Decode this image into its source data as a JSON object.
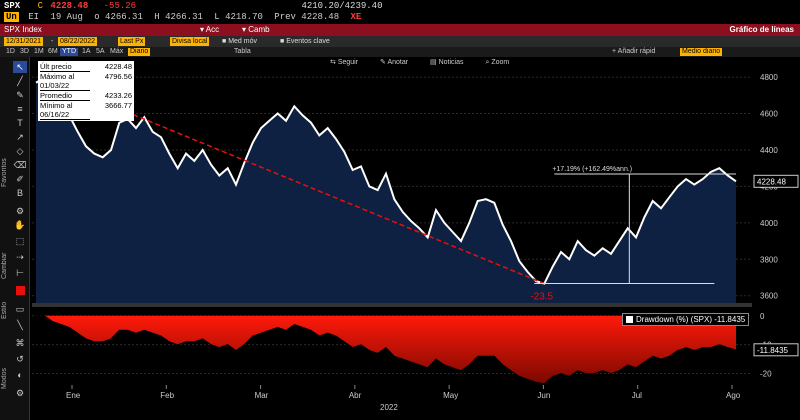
{
  "quote": {
    "ticker": "SPX",
    "exchange_code": "C",
    "price": "4228.48",
    "change": "-55.26",
    "range": "4210.20/4239.40",
    "currency_badge": "Un",
    "exchange_code2": "EI",
    "date": "19 Aug",
    "open": "o 4266.31",
    "high": "H 4266.31",
    "low": "L 4218.70",
    "prev": "Prev 4228.48",
    "close_mark": "XE"
  },
  "menu": {
    "security": "SPX Index",
    "items": [
      "Acc",
      "Camb"
    ],
    "title": "Gráfico de líneas"
  },
  "params": {
    "start_date": "12/31/2021",
    "end_date": "08/22/2022",
    "field": "Last Px",
    "local_ccy": "Divisa local",
    "med_mov": "Med móv",
    "events": "Eventos clave"
  },
  "ranges": [
    "1D",
    "3D",
    "1M",
    "6M",
    "YTD",
    "1A",
    "5A",
    "Máx",
    "Diario",
    "Tabla"
  ],
  "ranges_active": "YTD",
  "right_toolbar": {
    "add_label": "Añadir rápid",
    "field": "Medio diario"
  },
  "chart_toolbar": [
    "Seguir",
    "Anotar",
    "Noticias",
    "Zoom"
  ],
  "left_tools_labels": [
    "Favoritos",
    "Cambiar",
    "Estilo",
    "Modos"
  ],
  "legend": {
    "rows": [
      {
        "label": "Últ precio",
        "value": "4228.48"
      },
      {
        "label": "Máximo al 01/03/22",
        "value": "4796.56"
      },
      {
        "label": "Promedio",
        "value": "4233.26"
      },
      {
        "label": "Mínimo al 06/16/22",
        "value": "3666.77"
      }
    ]
  },
  "annotations": {
    "gain": "+17.19% (+162.49%ann.)",
    "decline": "-23.5",
    "last_tag": "4228.48",
    "dd_last_tag": "-11.8435"
  },
  "drawdown_label": "Drawdown (%) (SPX) -11.8435",
  "chart_data": [
    {
      "type": "area",
      "x_ticks": [
        "Ene",
        "Feb",
        "Mar",
        "Abr",
        "May",
        "Jun",
        "Jul",
        "Ago"
      ],
      "x_label": "2022",
      "y_ticks": [
        3600,
        3800,
        4000,
        4200,
        4400,
        4600,
        4800
      ],
      "ylim": [
        3560,
        4850
      ],
      "series": [
        {
          "values": [
            4770,
            4795,
            4700,
            4680,
            4590,
            4500,
            4420,
            4380,
            4360,
            4400,
            4550,
            4570,
            4520,
            4580,
            4500,
            4470,
            4380,
            4300,
            4380,
            4340,
            4400,
            4320,
            4260,
            4300,
            4210,
            4330,
            4440,
            4520,
            4560,
            4600,
            4560,
            4640,
            4590,
            4550,
            4480,
            4520,
            4460,
            4390,
            4290,
            4310,
            4200,
            4180,
            4270,
            4130,
            4060,
            4010,
            3970,
            3920,
            4070,
            4000,
            3950,
            3900,
            4000,
            4120,
            4130,
            4110,
            3990,
            3900,
            3790,
            3730,
            3680,
            3666,
            3760,
            3840,
            3800,
            3900,
            3850,
            3820,
            3860,
            3830,
            3900,
            3970,
            3920,
            4030,
            4120,
            4080,
            4140,
            4200,
            4240,
            4210,
            4240,
            4280,
            4300,
            4260,
            4228
          ],
          "line_color": "#ffffff",
          "fill_color": "#0f2142"
        }
      ],
      "high_line": 4796.56,
      "low_line": 3666.77,
      "grid": true
    },
    {
      "type": "area",
      "title": "Drawdown (%) (SPX) -11.8435",
      "y_ticks": [
        0,
        -10,
        -20
      ],
      "ylim": [
        -24,
        2
      ],
      "series": [
        {
          "name": "Drawdown (%) (SPX)",
          "values": [
            0,
            0,
            -2,
            -3,
            -4,
            -6,
            -8,
            -9,
            -9,
            -8,
            -5,
            -5,
            -6,
            -5,
            -6,
            -7,
            -9,
            -10,
            -9,
            -9,
            -8,
            -10,
            -11,
            -10,
            -12,
            -10,
            -7,
            -6,
            -5,
            -4,
            -5,
            -3,
            -4,
            -5,
            -7,
            -6,
            -7,
            -9,
            -11,
            -10,
            -12,
            -13,
            -11,
            -14,
            -15,
            -16,
            -17,
            -18,
            -15,
            -17,
            -18,
            -19,
            -17,
            -14,
            -14,
            -14,
            -17,
            -19,
            -21,
            -22,
            -23,
            -23.5,
            -21,
            -20,
            -21,
            -19,
            -20,
            -20,
            -19,
            -20,
            -19,
            -17,
            -18,
            -16,
            -14,
            -15,
            -14,
            -12,
            -11,
            -12,
            -11,
            -11,
            -10,
            -11,
            -11.8
          ],
          "fill_color": "#e8100a"
        }
      ]
    }
  ]
}
